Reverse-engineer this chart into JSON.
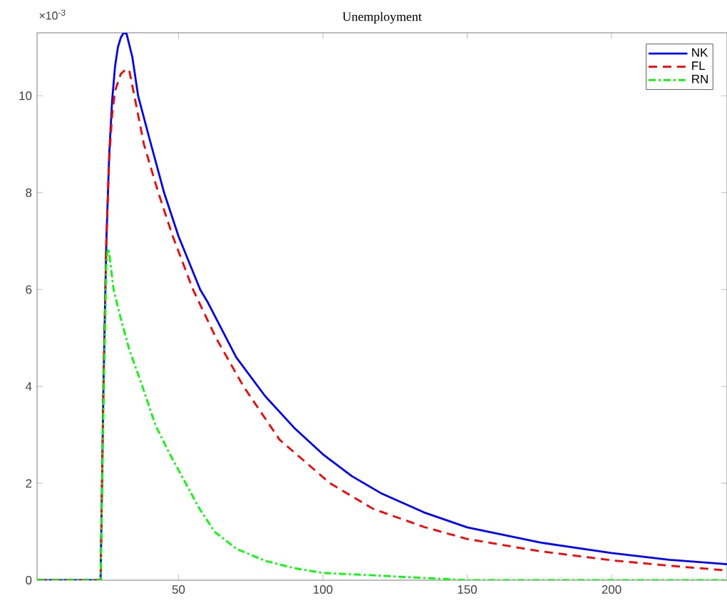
{
  "chart_data": {
    "type": "line",
    "title": "Unemployment",
    "annotations": [
      "×10$^{-3}$"
    ],
    "xlim": [
      1,
      240
    ],
    "ylim": [
      0,
      11.3
    ],
    "xticks": [
      50,
      100,
      150,
      200
    ],
    "yticks": [
      0,
      2,
      4,
      6,
      8,
      10
    ],
    "legend": "top right",
    "grid": false,
    "series": [
      {
        "name": "NK",
        "color": "#0000ff",
        "line_style": "solid",
        "x": [
          1,
          23,
          24,
          25,
          26,
          27,
          28,
          29,
          30,
          31,
          32,
          34,
          36,
          40,
          45,
          50,
          57.5,
          60,
          70,
          80,
          90,
          100,
          110,
          120,
          135,
          150,
          175,
          200,
          220,
          240
        ],
        "values": [
          0,
          0,
          4,
          7,
          8.8,
          9.9,
          10.6,
          11,
          11.2,
          11.3,
          11.28,
          10.8,
          10,
          9.1,
          8,
          7.1,
          6,
          5.75,
          4.6,
          3.8,
          3.15,
          2.6,
          2.15,
          1.8,
          1.4,
          1.09,
          0.78,
          0.56,
          0.42,
          0.33
        ]
      },
      {
        "name": "FL",
        "color": "#ff0000",
        "line_style": "dashed",
        "x": [
          1,
          23,
          24,
          25,
          26,
          27,
          28,
          30,
          32,
          33,
          34.7,
          38,
          43,
          48,
          55,
          63,
          72.5,
          85,
          102.5,
          117.5,
          135,
          150,
          175,
          200,
          220,
          240
        ],
        "values": [
          0,
          0,
          4,
          7,
          8.7,
          9.6,
          10.1,
          10.45,
          10.56,
          10.5,
          10,
          9,
          8,
          7.1,
          6,
          5,
          4,
          2.9,
          2,
          1.47,
          1.1,
          0.85,
          0.6,
          0.41,
          0.3,
          0.2
        ]
      },
      {
        "name": "RN",
        "color": "#00ff00",
        "line_style": "dashdot",
        "x": [
          1,
          23,
          24,
          25,
          25.5,
          26,
          27.5,
          30,
          33,
          37.5,
          42,
          47,
          52.5,
          57,
          62.5,
          70,
          80,
          90,
          100,
          117.5,
          150,
          200,
          240
        ],
        "values": [
          0,
          0,
          3.5,
          6.5,
          6.85,
          6.75,
          6,
          5.4,
          4.75,
          4,
          3.2,
          2.6,
          2,
          1.5,
          1,
          0.65,
          0.4,
          0.25,
          0.15,
          0.1,
          0,
          0,
          0
        ]
      }
    ]
  }
}
